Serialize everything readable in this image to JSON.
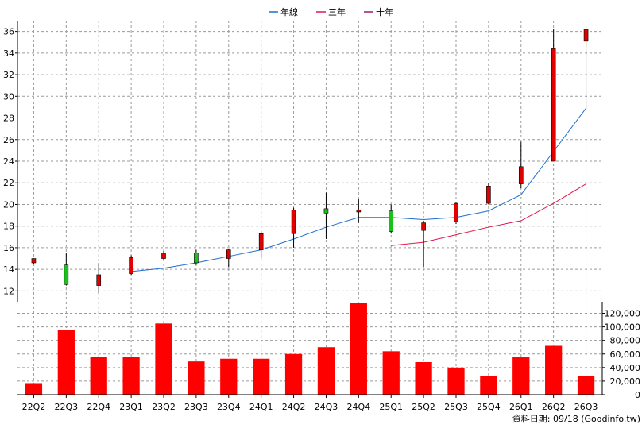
{
  "legend": [
    {
      "label": "年線",
      "color": "#1e6fd0"
    },
    {
      "label": "三年",
      "color": "#e0174a"
    },
    {
      "label": "十年",
      "color": "#a0186e"
    }
  ],
  "source_note": "資料日期: 09/18  (Goodinfo.tw)",
  "chart_data": [
    {
      "type": "candlestick",
      "categories": [
        "22Q2",
        "22Q3",
        "22Q4",
        "23Q1",
        "23Q2",
        "23Q3",
        "23Q4",
        "24Q1",
        "24Q2",
        "24Q3",
        "24Q4",
        "25Q1",
        "25Q2",
        "25Q3",
        "25Q4",
        "26Q1",
        "26Q2",
        "26Q3"
      ],
      "ylim": [
        11,
        37
      ],
      "yticks": [
        12,
        14,
        16,
        18,
        20,
        22,
        24,
        26,
        28,
        30,
        32,
        34,
        36
      ],
      "grid": true,
      "up_color": "#e00000",
      "down_color": "#19c219",
      "ohlc": [
        {
          "o": 14.6,
          "h": 15.0,
          "l": 14.5,
          "c": 15.0
        },
        {
          "o": 14.4,
          "h": 15.5,
          "l": 12.5,
          "c": 12.6
        },
        {
          "o": 12.5,
          "h": 14.6,
          "l": 11.8,
          "c": 13.5
        },
        {
          "o": 13.6,
          "h": 15.3,
          "l": 13.5,
          "c": 15.1
        },
        {
          "o": 15.0,
          "h": 15.7,
          "l": 14.9,
          "c": 15.5
        },
        {
          "o": 15.5,
          "h": 15.8,
          "l": 14.4,
          "c": 14.6
        },
        {
          "o": 15.0,
          "h": 15.9,
          "l": 14.2,
          "c": 15.8
        },
        {
          "o": 15.8,
          "h": 17.5,
          "l": 15.0,
          "c": 17.3
        },
        {
          "o": 17.3,
          "h": 19.7,
          "l": 16.0,
          "c": 19.5
        },
        {
          "o": 19.6,
          "h": 21.1,
          "l": 16.8,
          "c": 19.2
        },
        {
          "o": 19.3,
          "h": 20.5,
          "l": 18.3,
          "c": 19.5
        },
        {
          "o": 19.4,
          "h": 20.0,
          "l": 17.3,
          "c": 17.5
        },
        {
          "o": 17.6,
          "h": 18.5,
          "l": 14.2,
          "c": 18.3
        },
        {
          "o": 18.4,
          "h": 20.2,
          "l": 18.2,
          "c": 20.1
        },
        {
          "o": 20.1,
          "h": 22.0,
          "l": 20.0,
          "c": 21.7
        },
        {
          "o": 21.9,
          "h": 25.8,
          "l": 21.5,
          "c": 23.5
        },
        {
          "o": 24.0,
          "h": 36.2,
          "l": 24.0,
          "c": 34.4
        },
        {
          "o": 35.1,
          "h": 36.2,
          "l": 28.8,
          "c": 36.2
        }
      ],
      "series": [
        {
          "name": "年線",
          "color": "#1e6fd0",
          "values": [
            null,
            null,
            null,
            13.8,
            14.1,
            14.6,
            15.2,
            15.8,
            16.8,
            17.9,
            18.8,
            18.8,
            18.6,
            18.8,
            19.4,
            20.9,
            24.9,
            28.9
          ]
        },
        {
          "name": "三年",
          "color": "#e0174a",
          "values": [
            null,
            null,
            null,
            null,
            null,
            null,
            null,
            null,
            null,
            null,
            null,
            16.2,
            16.5,
            17.2,
            17.9,
            18.5,
            20.1,
            21.9
          ]
        },
        {
          "name": "十年",
          "color": "#a0186e",
          "values": [
            null,
            null,
            null,
            null,
            null,
            null,
            null,
            null,
            null,
            null,
            null,
            null,
            null,
            null,
            null,
            null,
            null,
            null
          ]
        }
      ]
    },
    {
      "type": "bar",
      "categories": [
        "22Q2",
        "22Q3",
        "22Q4",
        "23Q1",
        "23Q2",
        "23Q3",
        "23Q4",
        "24Q1",
        "24Q2",
        "24Q3",
        "24Q4",
        "25Q1",
        "25Q2",
        "25Q3",
        "25Q4",
        "26Q1",
        "26Q2",
        "26Q3"
      ],
      "values": [
        17000,
        96000,
        56000,
        56000,
        105000,
        49000,
        53000,
        53000,
        60000,
        70000,
        135000,
        64000,
        48000,
        40000,
        28000,
        55000,
        72000,
        28000
      ],
      "ylim": [
        0,
        137000
      ],
      "yticks": [
        0,
        20000,
        40000,
        60000,
        80000,
        100000,
        120000
      ],
      "ytick_labels": [
        "0",
        "20,000",
        "40,000",
        "60,000",
        "80,000",
        "100,000",
        "120,000"
      ],
      "color": "#ff0000",
      "grid": true
    }
  ]
}
